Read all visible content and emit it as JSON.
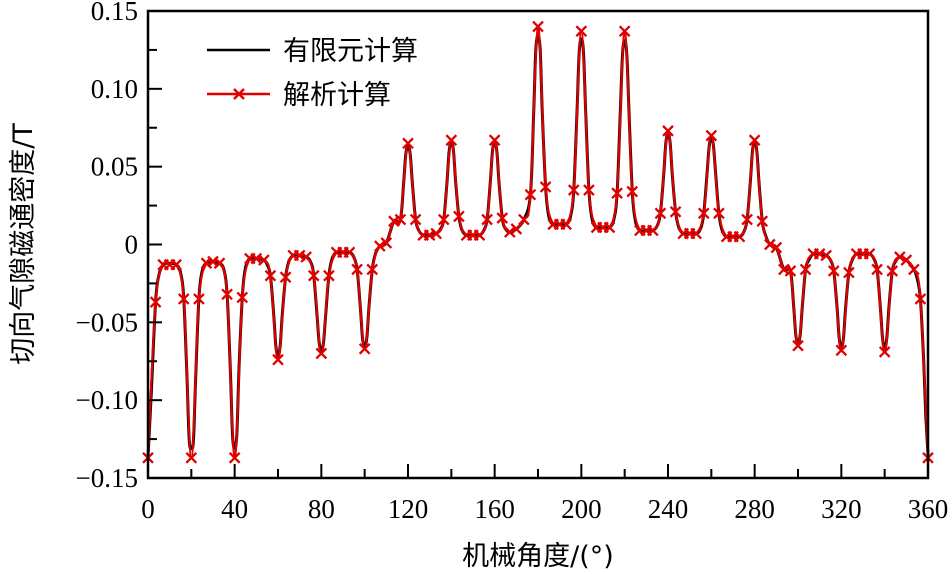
{
  "chart_data": {
    "type": "line",
    "title": "",
    "xlabel": "机械角度/(°)",
    "ylabel": "切向气隙磁通密度/T",
    "xlim": [
      0,
      360
    ],
    "ylim": [
      -0.15,
      0.15
    ],
    "xticks": [
      0,
      40,
      80,
      120,
      160,
      200,
      240,
      280,
      320,
      360
    ],
    "xtick_labels": [
      "0",
      "40",
      "80",
      "120",
      "160",
      "200",
      "240",
      "280",
      "320",
      "360"
    ],
    "x_minor_step": 20,
    "yticks": [
      -0.15,
      -0.1,
      -0.05,
      0,
      0.05,
      0.1,
      0.15
    ],
    "ytick_labels": [
      "−0.15",
      "−0.10",
      "−0.05",
      "0",
      "0.05",
      "0.10",
      "0.15"
    ],
    "y_minor_step": 0.025,
    "grid": false,
    "legend_position": "upper-left",
    "series": [
      {
        "name": "有限元计算",
        "color": "#000000",
        "marker": "none",
        "x": [
          0,
          1.5,
          3.5,
          5,
          7,
          10,
          13,
          15,
          16.5,
          18,
          19,
          20,
          21,
          22,
          23.5,
          25,
          27,
          30,
          33,
          35,
          36.5,
          38,
          39,
          40,
          41,
          42,
          43.5,
          45,
          47,
          50,
          53.5,
          55,
          56.5,
          58,
          59,
          60,
          61,
          62,
          63.5,
          65,
          67,
          70,
          73,
          75,
          76.5,
          78,
          79,
          80,
          81,
          82,
          83.5,
          85,
          87,
          90,
          93,
          95,
          96.5,
          98,
          99,
          100,
          101,
          102,
          103.5,
          105,
          107,
          110,
          113.5,
          116.5,
          118,
          119,
          120,
          121,
          122,
          123.5,
          125,
          127,
          130,
          133,
          135,
          136.5,
          138,
          139,
          140,
          141,
          142,
          143.5,
          145,
          147,
          150,
          153,
          155,
          156.5,
          158,
          159,
          160,
          161,
          162,
          163.5,
          165,
          167,
          170,
          173.5,
          176.5,
          178,
          179,
          180,
          181,
          182,
          183.5,
          185,
          187,
          190,
          193,
          195,
          196.5,
          198,
          199,
          200,
          201,
          202,
          203.5,
          205,
          207,
          210,
          213,
          215,
          216.5,
          218,
          219,
          220,
          221,
          222,
          223.5,
          225,
          227,
          230,
          233,
          235,
          236.5,
          238,
          239,
          240,
          241,
          242,
          243.5,
          245,
          247,
          250,
          253,
          255,
          256.5,
          258,
          259,
          260,
          261,
          262,
          263.5,
          265,
          267,
          270,
          273,
          275,
          276.5,
          278,
          279,
          280,
          281,
          282,
          283.5,
          285,
          287,
          290,
          293.5,
          296.5,
          298,
          299,
          300,
          301,
          302,
          303.5,
          305,
          307,
          310,
          313,
          315,
          316.5,
          318,
          319,
          320,
          321,
          322,
          323.5,
          325,
          327,
          330,
          333,
          335,
          336.5,
          338,
          339,
          340,
          341,
          342,
          343.5,
          345,
          347,
          350,
          353.5,
          355,
          356.5,
          358,
          359,
          360
        ],
        "y": [
          -0.137,
          -0.095,
          -0.037,
          -0.02,
          -0.013,
          -0.012,
          -0.013,
          -0.018,
          -0.035,
          -0.085,
          -0.125,
          -0.131,
          -0.125,
          -0.085,
          -0.035,
          -0.017,
          -0.012,
          -0.011,
          -0.012,
          -0.016,
          -0.032,
          -0.08,
          -0.122,
          -0.131,
          -0.122,
          -0.08,
          -0.034,
          -0.015,
          -0.009,
          -0.009,
          -0.01,
          -0.013,
          -0.02,
          -0.045,
          -0.065,
          -0.072,
          -0.065,
          -0.045,
          -0.021,
          -0.011,
          -0.007,
          -0.007,
          -0.008,
          -0.011,
          -0.02,
          -0.045,
          -0.063,
          -0.068,
          -0.063,
          -0.045,
          -0.02,
          -0.009,
          -0.005,
          -0.005,
          -0.005,
          -0.008,
          -0.016,
          -0.04,
          -0.06,
          -0.066,
          -0.06,
          -0.04,
          -0.016,
          -0.006,
          -0.001,
          0.001,
          0.015,
          0.016,
          0.04,
          0.058,
          0.064,
          0.058,
          0.04,
          0.016,
          0.009,
          0.006,
          0.006,
          0.007,
          0.01,
          0.016,
          0.04,
          0.06,
          0.066,
          0.06,
          0.04,
          0.018,
          0.009,
          0.006,
          0.006,
          0.006,
          0.009,
          0.016,
          0.04,
          0.06,
          0.066,
          0.06,
          0.04,
          0.017,
          0.01,
          0.008,
          0.01,
          0.016,
          0.032,
          0.085,
          0.125,
          0.134,
          0.125,
          0.085,
          0.037,
          0.018,
          0.013,
          0.013,
          0.013,
          0.018,
          0.035,
          0.085,
          0.123,
          0.132,
          0.123,
          0.085,
          0.035,
          0.016,
          0.011,
          0.011,
          0.011,
          0.016,
          0.033,
          0.085,
          0.122,
          0.131,
          0.122,
          0.085,
          0.034,
          0.015,
          0.009,
          0.009,
          0.009,
          0.012,
          0.02,
          0.045,
          0.065,
          0.072,
          0.065,
          0.045,
          0.021,
          0.011,
          0.007,
          0.007,
          0.007,
          0.01,
          0.02,
          0.045,
          0.063,
          0.069,
          0.063,
          0.045,
          0.02,
          0.009,
          0.005,
          0.005,
          0.005,
          0.008,
          0.016,
          0.04,
          0.06,
          0.066,
          0.06,
          0.04,
          0.015,
          0.006,
          0.0,
          -0.002,
          -0.016,
          -0.017,
          -0.04,
          -0.058,
          -0.064,
          -0.058,
          -0.04,
          -0.016,
          -0.01,
          -0.006,
          -0.006,
          -0.007,
          -0.01,
          -0.017,
          -0.04,
          -0.06,
          -0.066,
          -0.06,
          -0.04,
          -0.018,
          -0.01,
          -0.006,
          -0.006,
          -0.006,
          -0.009,
          -0.016,
          -0.04,
          -0.06,
          -0.067,
          -0.06,
          -0.04,
          -0.017,
          -0.011,
          -0.008,
          -0.01,
          -0.016,
          -0.022,
          -0.035,
          -0.075,
          -0.11,
          -0.135
        ]
      },
      {
        "name": "解析计算",
        "color": "#e00000",
        "marker": "x",
        "x": [
          0,
          3.5,
          7,
          10,
          13,
          16.5,
          20,
          23.5,
          27,
          30,
          33,
          36.5,
          40,
          43.5,
          47,
          50,
          53.5,
          56.5,
          60,
          63.5,
          67,
          70,
          73,
          76.5,
          80,
          83.5,
          87,
          90,
          93,
          96.5,
          100,
          103.5,
          107,
          110,
          113.5,
          116.5,
          120,
          123.5,
          127,
          130,
          133,
          136.5,
          140,
          143.5,
          147,
          150,
          153,
          156.5,
          160,
          163.5,
          167,
          170,
          173.5,
          176.5,
          180,
          183.5,
          187,
          190,
          193,
          196.5,
          200,
          203.5,
          207,
          210,
          213,
          216.5,
          220,
          223.5,
          227,
          230,
          233,
          236.5,
          240,
          243.5,
          247,
          250,
          253,
          256.5,
          260,
          263.5,
          267,
          270,
          273,
          276.5,
          280,
          283.5,
          287,
          290,
          293.5,
          296.5,
          300,
          303.5,
          307,
          310,
          313,
          316.5,
          320,
          323.5,
          327,
          330,
          333,
          336.5,
          340,
          343.5,
          347,
          350,
          353.5,
          356.5,
          360
        ],
        "y": [
          -0.137,
          -0.037,
          -0.013,
          -0.013,
          -0.013,
          -0.035,
          -0.137,
          -0.035,
          -0.012,
          -0.011,
          -0.012,
          -0.032,
          -0.137,
          -0.034,
          -0.009,
          -0.009,
          -0.01,
          -0.02,
          -0.074,
          -0.021,
          -0.007,
          -0.007,
          -0.008,
          -0.02,
          -0.07,
          -0.02,
          -0.005,
          -0.005,
          -0.005,
          -0.016,
          -0.067,
          -0.016,
          -0.001,
          0.001,
          0.015,
          0.016,
          0.065,
          0.016,
          0.006,
          0.006,
          0.007,
          0.016,
          0.067,
          0.018,
          0.006,
          0.006,
          0.006,
          0.016,
          0.067,
          0.017,
          0.008,
          0.01,
          0.016,
          0.032,
          0.14,
          0.037,
          0.013,
          0.013,
          0.013,
          0.035,
          0.137,
          0.035,
          0.011,
          0.011,
          0.011,
          0.033,
          0.137,
          0.034,
          0.009,
          0.009,
          0.009,
          0.02,
          0.073,
          0.021,
          0.007,
          0.007,
          0.007,
          0.02,
          0.07,
          0.02,
          0.005,
          0.005,
          0.005,
          0.016,
          0.067,
          0.015,
          0.0,
          -0.002,
          -0.016,
          -0.017,
          -0.065,
          -0.016,
          -0.006,
          -0.006,
          -0.007,
          -0.017,
          -0.068,
          -0.018,
          -0.006,
          -0.006,
          -0.006,
          -0.016,
          -0.069,
          -0.017,
          -0.008,
          -0.01,
          -0.016,
          -0.035,
          -0.137
        ]
      }
    ]
  },
  "legend": {
    "items": [
      {
        "label": "有限元计算",
        "color": "#000000",
        "marker": "none"
      },
      {
        "label": "解析计算",
        "color": "#e00000",
        "marker": "x"
      }
    ]
  }
}
